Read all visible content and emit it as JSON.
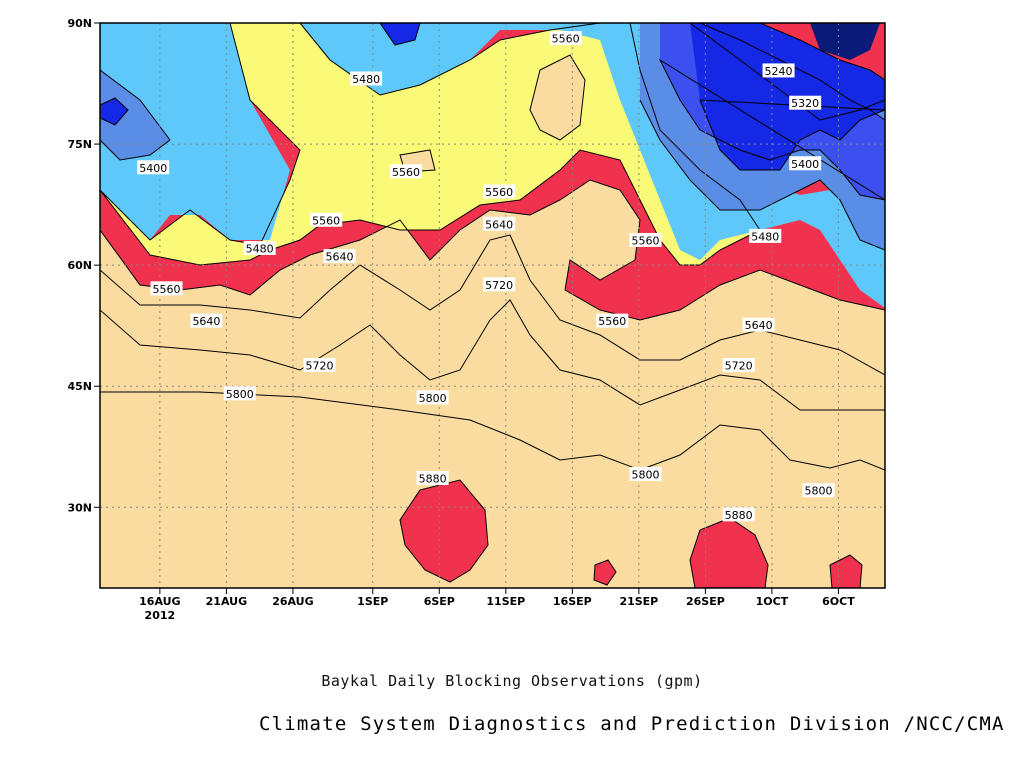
{
  "chart_data": {
    "type": "heatmap",
    "title": "Baykal Daily Blocking Observations (gpm)",
    "credit": "Climate System Diagnostics and Prediction Division /NCC/CMA",
    "xlabel": "",
    "ylabel": "",
    "x_ticks": [
      "16AUG",
      "21AUG",
      "26AUG",
      "1SEP",
      "6SEP",
      "11SEP",
      "16SEP",
      "21SEP",
      "26SEP",
      "1OCT",
      "6OCT"
    ],
    "x_year_label": "2012",
    "x_year_day": 16,
    "x_day_range": [
      11.5,
      70.5
    ],
    "x_tick_days": [
      16,
      21,
      26,
      32,
      37,
      42,
      47,
      52,
      57,
      62,
      67
    ],
    "y_ticks": [
      "30N",
      "45N",
      "60N",
      "75N",
      "90N"
    ],
    "y_tick_values": [
      30,
      45,
      60,
      75,
      90
    ],
    "ylim": [
      20,
      90
    ],
    "grid": true,
    "contour_levels": [
      5240,
      5320,
      5400,
      5480,
      5560,
      5640,
      5720,
      5800,
      5880
    ],
    "fill_colors": {
      "below_5240": "#0a1a78",
      "5240": "#1428e6",
      "5320": "#3c50f0",
      "5400": "#5a8ee6",
      "5480": "#5ec8fa",
      "5560": "#fafa78",
      "5640": "#fadca0",
      "5720": "#fa9c6a",
      "5800": "#fa7848",
      "5880": "#f5707a",
      "above_5880": "#f0324e"
    },
    "contour_labels": [
      {
        "text": "5240",
        "day": 62.5,
        "lat": 84
      },
      {
        "text": "5320",
        "day": 64.5,
        "lat": 80
      },
      {
        "text": "5400",
        "day": 15.5,
        "lat": 72
      },
      {
        "text": "5400",
        "day": 64.5,
        "lat": 72.5
      },
      {
        "text": "5480",
        "day": 31.5,
        "lat": 83
      },
      {
        "text": "5480",
        "day": 23.5,
        "lat": 62
      },
      {
        "text": "5480",
        "day": 61.5,
        "lat": 63.5
      },
      {
        "text": "5560",
        "day": 46.5,
        "lat": 88
      },
      {
        "text": "5560",
        "day": 34.5,
        "lat": 71.5
      },
      {
        "text": "5560",
        "day": 41.5,
        "lat": 69
      },
      {
        "text": "5560",
        "day": 28.5,
        "lat": 65.5
      },
      {
        "text": "5560",
        "day": 52.5,
        "lat": 63
      },
      {
        "text": "5560",
        "day": 16.5,
        "lat": 57
      },
      {
        "text": "5560",
        "day": 50,
        "lat": 53
      },
      {
        "text": "5640",
        "day": 29.5,
        "lat": 61
      },
      {
        "text": "5640",
        "day": 41.5,
        "lat": 65
      },
      {
        "text": "5640",
        "day": 19.5,
        "lat": 53
      },
      {
        "text": "5640",
        "day": 61,
        "lat": 52.5
      },
      {
        "text": "5720",
        "day": 41.5,
        "lat": 57.5
      },
      {
        "text": "5720",
        "day": 28,
        "lat": 47.5
      },
      {
        "text": "5720",
        "day": 59.5,
        "lat": 47.5
      },
      {
        "text": "5800",
        "day": 22,
        "lat": 44
      },
      {
        "text": "5800",
        "day": 36.5,
        "lat": 43.5
      },
      {
        "text": "5800",
        "day": 52.5,
        "lat": 34
      },
      {
        "text": "5800",
        "day": 65.5,
        "lat": 32
      },
      {
        "text": "5880",
        "day": 36.5,
        "lat": 33.5
      },
      {
        "text": "5880",
        "day": 59.5,
        "lat": 29
      }
    ]
  }
}
